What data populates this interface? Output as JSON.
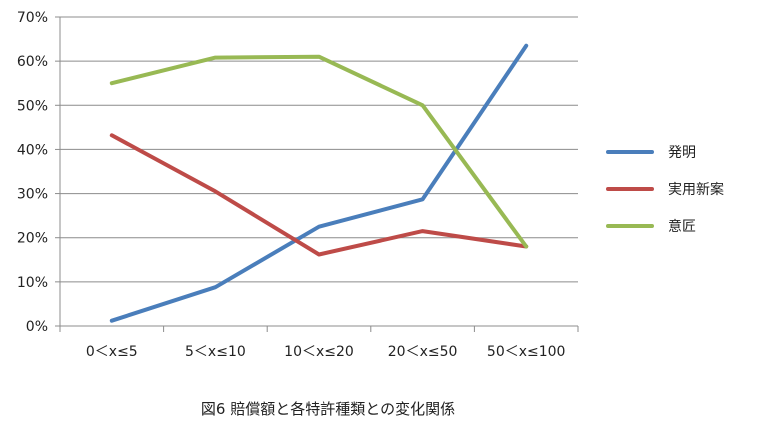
{
  "chart_data": {
    "type": "line",
    "title": "",
    "xlabel": "",
    "ylabel": "",
    "caption": "図6 賠償額と各特許種類との変化関係",
    "categories": [
      "0＜x≤5",
      "5＜x≤10",
      "10＜x≤20",
      "20＜x≤50",
      "50＜x≤100"
    ],
    "ylim": [
      0,
      70
    ],
    "yticks": [
      "0%",
      "10%",
      "20%",
      "30%",
      "40%",
      "50%",
      "60%",
      "70%"
    ],
    "grid": true,
    "legend_position": "right",
    "series": [
      {
        "name": "発明",
        "color": "#4a7ebb",
        "values": [
          1.2,
          8.8,
          22.5,
          28.7,
          63.5
        ]
      },
      {
        "name": "実用新案",
        "color": "#be4b48",
        "values": [
          43.2,
          30.5,
          16.2,
          21.5,
          18.0
        ]
      },
      {
        "name": "意匠",
        "color": "#98b954",
        "values": [
          55.0,
          60.8,
          61.0,
          50.0,
          18.0
        ]
      }
    ]
  }
}
